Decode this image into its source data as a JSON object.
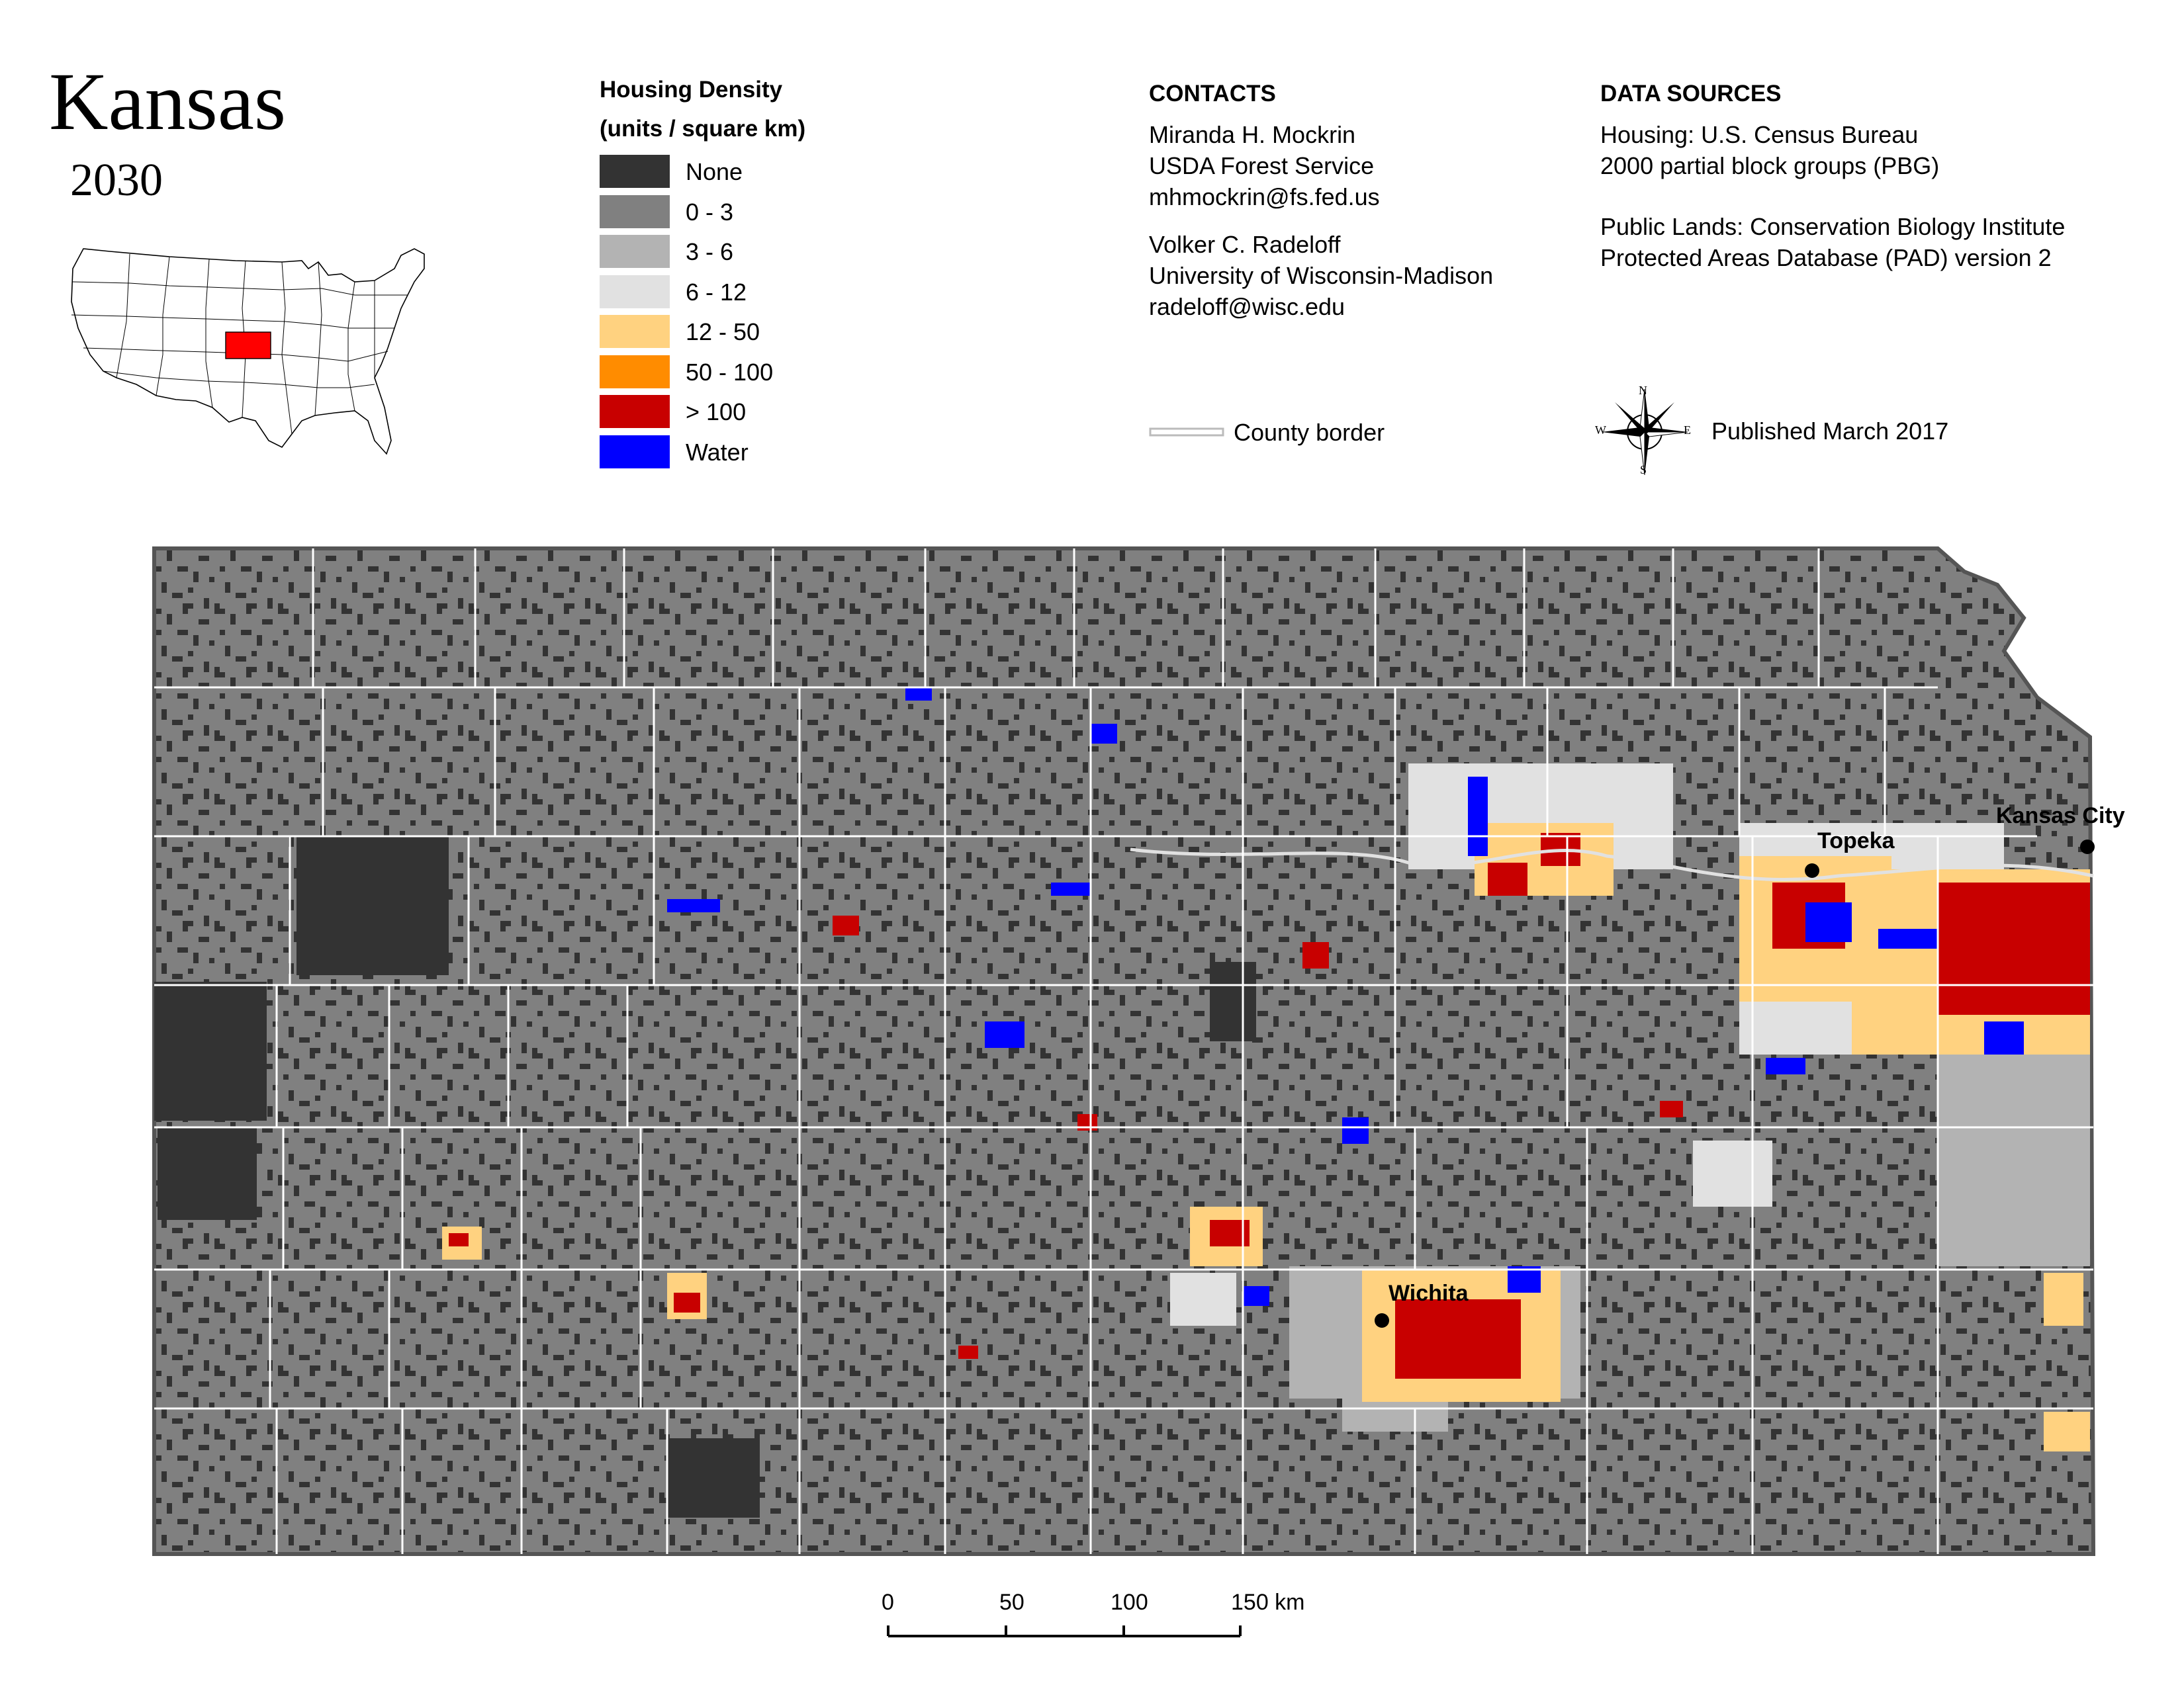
{
  "title": "Kansas",
  "year": "2030",
  "legend": {
    "heading1": "Housing Density",
    "heading2": "(units / square km)",
    "items": [
      {
        "label": "None",
        "color": "#333333"
      },
      {
        "label": "0 - 3",
        "color": "#808080"
      },
      {
        "label": "3 - 6",
        "color": "#b3b3b3"
      },
      {
        "label": "6 - 12",
        "color": "#e1e1e1"
      },
      {
        "label": "12 - 50",
        "color": "#ffd280"
      },
      {
        "label": "50 - 100",
        "color": "#ff8c00"
      },
      {
        "label": "> 100",
        "color": "#c80000"
      },
      {
        "label": "Water",
        "color": "#0000ff"
      }
    ]
  },
  "contacts": {
    "heading": "CONTACTS",
    "lines1": [
      "Miranda H. Mockrin",
      "USDA Forest Service",
      "mhmockrin@fs.fed.us"
    ],
    "lines2": [
      "Volker C. Radeloff",
      "University of Wisconsin-Madison",
      "radeloff@wisc.edu"
    ],
    "county_border": "County border"
  },
  "sources": {
    "heading": "DATA SOURCES",
    "lines1": [
      "Housing: U.S. Census Bureau",
      "2000 partial block groups (PBG)"
    ],
    "lines2": [
      "Public Lands: Conservation Biology Institute",
      "Protected Areas Database (PAD) version 2"
    ],
    "published": "Published March 2017"
  },
  "compass": {
    "n": "N",
    "s": "S",
    "e": "E",
    "w": "W"
  },
  "cities": [
    {
      "name": "Topeka"
    },
    {
      "name": "Kansas City"
    },
    {
      "name": "Wichita"
    }
  ],
  "scale": {
    "ticks": [
      "0",
      "50",
      "100",
      "150 km"
    ]
  },
  "colors": {
    "state_highlight": "#ff0000",
    "county_border": "#ffffff",
    "background": "#808080"
  }
}
